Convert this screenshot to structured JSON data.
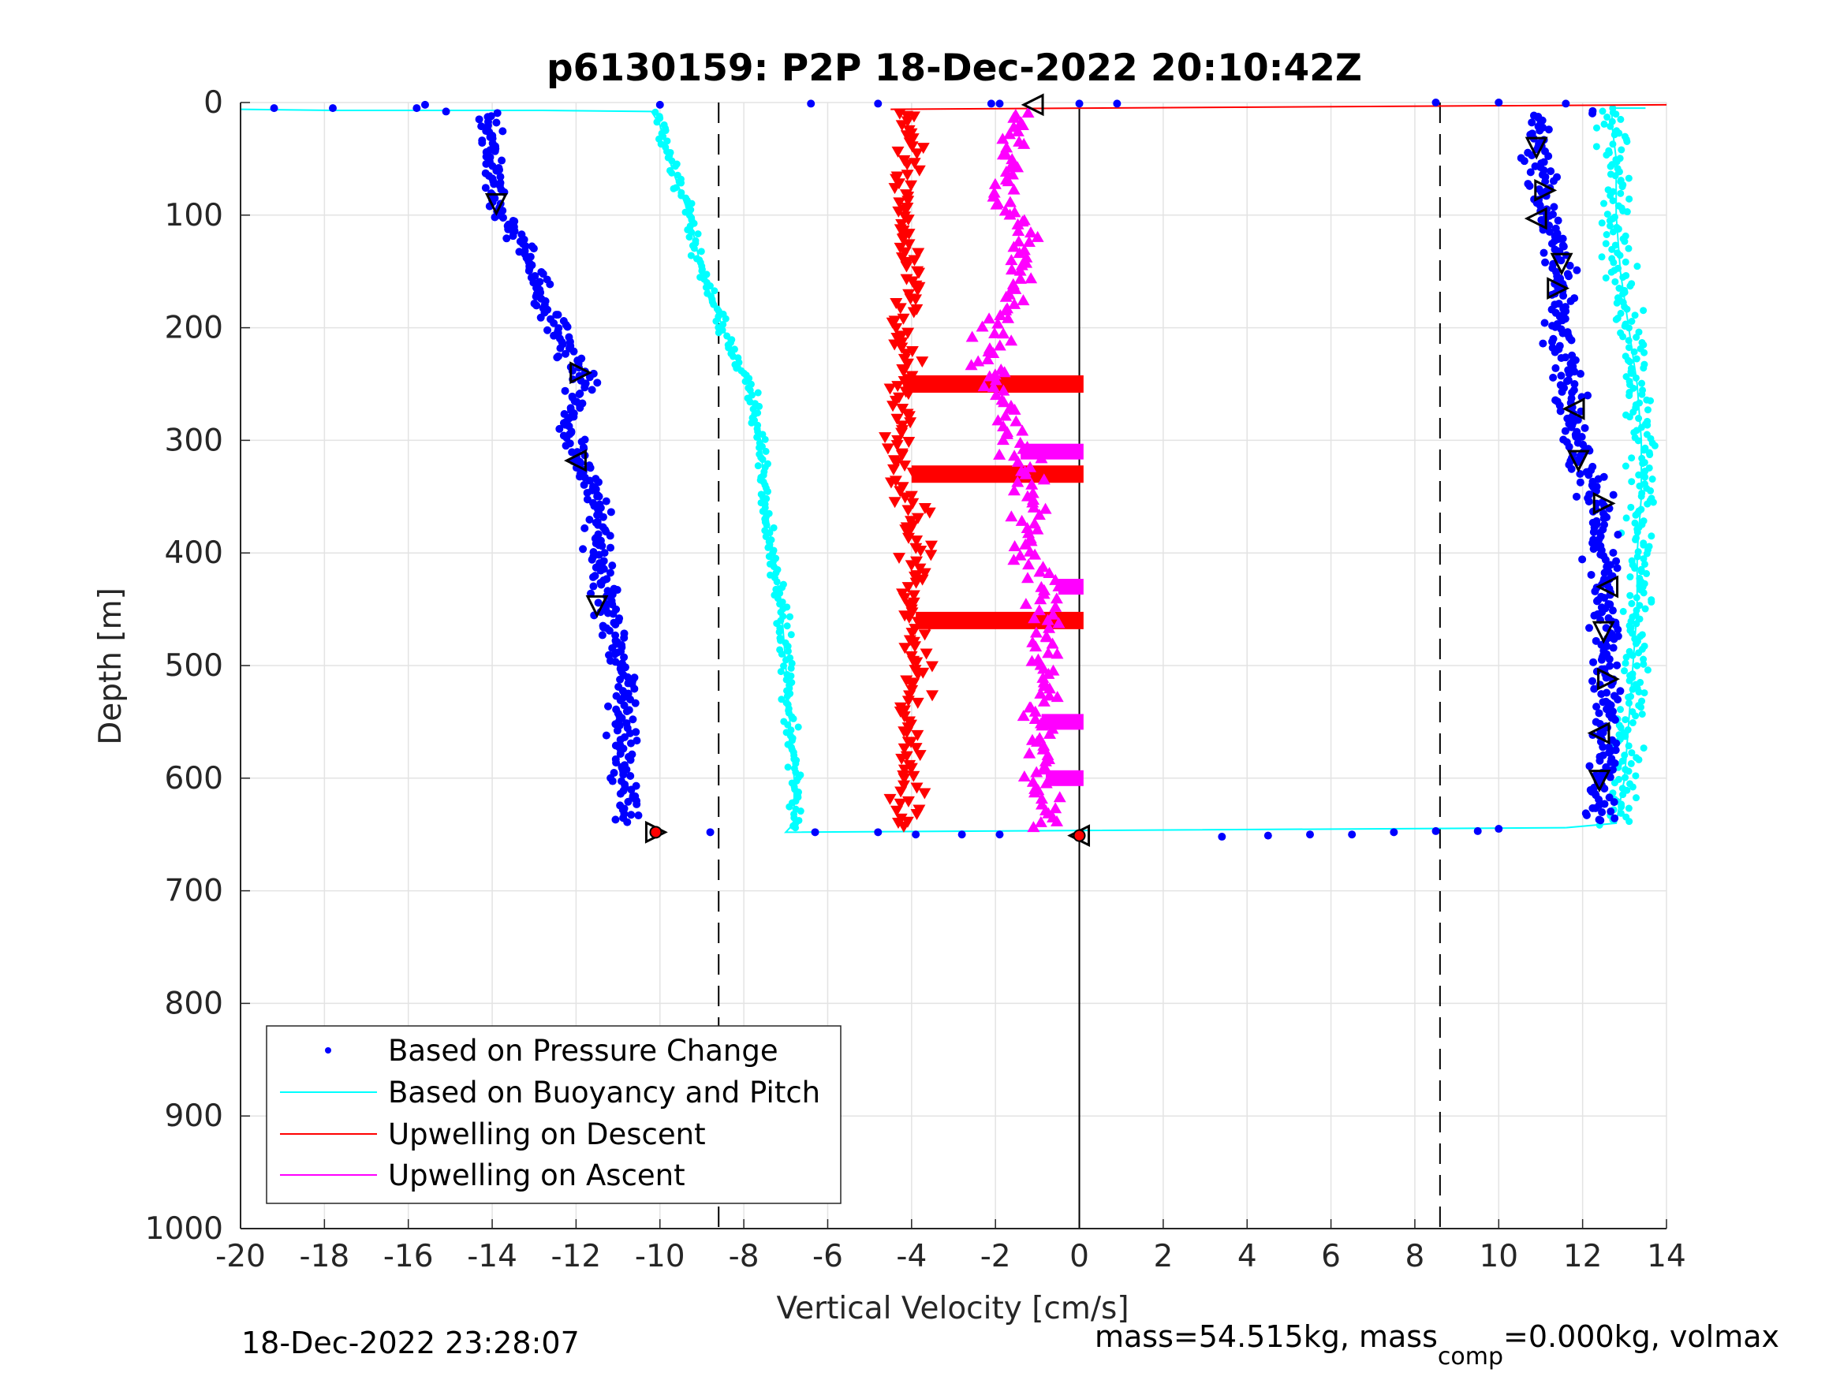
{
  "chart_data": {
    "type": "scatter",
    "title": "p6130159: P2P 18-Dec-2022 20:10:42Z",
    "xlabel": "Vertical Velocity [cm/s]",
    "ylabel": "Depth [m]",
    "xlim": [
      -20,
      14
    ],
    "ylim": [
      0,
      1000
    ],
    "y_reversed": true,
    "grid": true,
    "xticks": [
      "-20",
      "-18",
      "-16",
      "-14",
      "-12",
      "-10",
      "-8",
      "-6",
      "-4",
      "-2",
      "0",
      "2",
      "4",
      "6",
      "8",
      "10",
      "12",
      "14"
    ],
    "yticks": [
      "0",
      "100",
      "200",
      "300",
      "400",
      "500",
      "600",
      "700",
      "800",
      "900",
      "1000"
    ],
    "reference_lines": {
      "dashed_x": [
        -8.6,
        8.6
      ],
      "solid_x": [
        0
      ]
    },
    "legend_position": "bottom-left",
    "series": [
      {
        "name": "Based on Pressure Change",
        "marker": "dot",
        "color": "#0000ff",
        "descent": [
          [
            -14,
            10
          ],
          [
            -14,
            50
          ],
          [
            -13.9,
            90
          ],
          [
            -13.3,
            120
          ],
          [
            -12.8,
            180
          ],
          [
            -12.3,
            210
          ],
          [
            -11.8,
            245
          ],
          [
            -12.2,
            290
          ],
          [
            -11.9,
            320
          ],
          [
            -11.4,
            360
          ],
          [
            -11.5,
            400
          ],
          [
            -11.2,
            460
          ],
          [
            -10.8,
            520
          ],
          [
            -10.9,
            580
          ],
          [
            -10.7,
            640
          ]
        ],
        "ascent": [
          [
            11,
            10
          ],
          [
            10.9,
            40
          ],
          [
            11.1,
            90
          ],
          [
            11.5,
            150
          ],
          [
            11.4,
            200
          ],
          [
            11.6,
            250
          ],
          [
            11.8,
            280
          ],
          [
            12,
            320
          ],
          [
            12.4,
            360
          ],
          [
            12.5,
            420
          ],
          [
            12.6,
            480
          ],
          [
            12.6,
            540
          ],
          [
            12.5,
            600
          ],
          [
            12.4,
            640
          ]
        ],
        "surface_points": [
          [
            -19.2,
            5
          ],
          [
            -17.8,
            5
          ],
          [
            -15.8,
            5
          ],
          [
            -15.6,
            2
          ],
          [
            -15.1,
            8
          ],
          [
            -10,
            2
          ],
          [
            -6.4,
            1
          ],
          [
            -4.8,
            1
          ],
          [
            -2.1,
            1
          ],
          [
            -1.9,
            1
          ],
          [
            0,
            1
          ],
          [
            0.9,
            1
          ],
          [
            8.5,
            0
          ],
          [
            10,
            0
          ],
          [
            11.6,
            1
          ]
        ],
        "bottom_points": [
          [
            -8.8,
            648
          ],
          [
            -6.3,
            648
          ],
          [
            -4.8,
            648
          ],
          [
            -3.9,
            650
          ],
          [
            -2.8,
            650
          ],
          [
            -1.9,
            650
          ],
          [
            3.4,
            652
          ],
          [
            4.5,
            651
          ],
          [
            5.5,
            650
          ],
          [
            6.5,
            650
          ],
          [
            7.5,
            648
          ],
          [
            8.5,
            647
          ],
          [
            9.5,
            647
          ],
          [
            10,
            645
          ]
        ]
      },
      {
        "name": "Based on Buoyancy and Pitch",
        "marker": "line",
        "color": "#00ffff",
        "descent": [
          [
            -20,
            6
          ],
          [
            -17.8,
            7
          ],
          [
            -12.8,
            7
          ],
          [
            -10.2,
            8
          ],
          [
            -10,
            20
          ],
          [
            -9.7,
            60
          ],
          [
            -9.3,
            100
          ],
          [
            -9,
            150
          ],
          [
            -8.5,
            200
          ],
          [
            -7.9,
            250
          ],
          [
            -7.6,
            300
          ],
          [
            -7.5,
            350
          ],
          [
            -7.3,
            400
          ],
          [
            -7.1,
            450
          ],
          [
            -7,
            500
          ],
          [
            -6.9,
            550
          ],
          [
            -6.8,
            600
          ],
          [
            -6.8,
            640
          ],
          [
            -7,
            648
          ]
        ],
        "ascent": [
          [
            11.6,
            644
          ],
          [
            12.8,
            640
          ],
          [
            13,
            600
          ],
          [
            13.1,
            550
          ],
          [
            13.2,
            500
          ],
          [
            13.3,
            450
          ],
          [
            13.3,
            400
          ],
          [
            13.4,
            350
          ],
          [
            13.4,
            300
          ],
          [
            13.3,
            250
          ],
          [
            13.1,
            200
          ],
          [
            12.9,
            150
          ],
          [
            12.8,
            100
          ],
          [
            12.8,
            50
          ],
          [
            12.7,
            20
          ],
          [
            12.7,
            5
          ],
          [
            13.5,
            5
          ]
        ]
      },
      {
        "name": "Upwelling on Descent",
        "marker": "triangle-down",
        "color": "#ff0000",
        "points": [
          [
            -4,
            10
          ],
          [
            -4.1,
            50
          ],
          [
            -4.3,
            100
          ],
          [
            -4,
            150
          ],
          [
            -4.2,
            200
          ],
          [
            -4.1,
            250
          ],
          [
            -4.4,
            300
          ],
          [
            -4,
            350
          ],
          [
            -3.9,
            400
          ],
          [
            -4,
            450
          ],
          [
            -3.8,
            500
          ],
          [
            -4,
            550
          ],
          [
            -4.1,
            600
          ],
          [
            -4.2,
            640
          ]
        ],
        "bands": [
          [
            -4.2,
            250,
            0.1
          ],
          [
            -4,
            330,
            0.1
          ],
          [
            -3.9,
            460,
            0.1
          ]
        ],
        "surface_line": [
          [
            -4.5,
            6
          ],
          [
            14,
            2
          ]
        ]
      },
      {
        "name": "Upwelling on Ascent",
        "marker": "triangle-up",
        "color": "#ff00ff",
        "points": [
          [
            -1.3,
            10
          ],
          [
            -1.7,
            50
          ],
          [
            -1.9,
            90
          ],
          [
            -1.2,
            120
          ],
          [
            -1.7,
            180
          ],
          [
            -2.1,
            220
          ],
          [
            -2,
            260
          ],
          [
            -1.4,
            310
          ],
          [
            -1.1,
            360
          ],
          [
            -1.2,
            400
          ],
          [
            -0.9,
            450
          ],
          [
            -0.8,
            500
          ],
          [
            -1,
            550
          ],
          [
            -0.9,
            600
          ],
          [
            -0.9,
            640
          ]
        ],
        "bands": [
          [
            -1.4,
            310,
            0.1
          ],
          [
            -0.5,
            430,
            0.1
          ],
          [
            -0.9,
            550,
            0.1
          ],
          [
            -0.8,
            600,
            0.1
          ]
        ]
      }
    ],
    "black_triangle_markers": [
      [
        -1.1,
        2
      ],
      [
        -13.9,
        90
      ],
      [
        -11.9,
        240
      ],
      [
        -12,
        318
      ],
      [
        -11.5,
        447
      ],
      [
        -10.1,
        648
      ],
      [
        0,
        651
      ],
      [
        10.9,
        40
      ],
      [
        11.1,
        78
      ],
      [
        10.9,
        103
      ],
      [
        11.5,
        143
      ],
      [
        11.4,
        165
      ],
      [
        11.8,
        272
      ],
      [
        11.9,
        318
      ],
      [
        12.5,
        356
      ],
      [
        12.6,
        430
      ],
      [
        12.5,
        470
      ],
      [
        12.6,
        512
      ],
      [
        12.4,
        560
      ],
      [
        12.4,
        602
      ]
    ],
    "footer_left": "18-Dec-2022 23:28:07",
    "footer_right": {
      "pre": "mass=54.515kg, mass",
      "sub": "comp",
      "post": "=0.000kg, volmax"
    }
  }
}
